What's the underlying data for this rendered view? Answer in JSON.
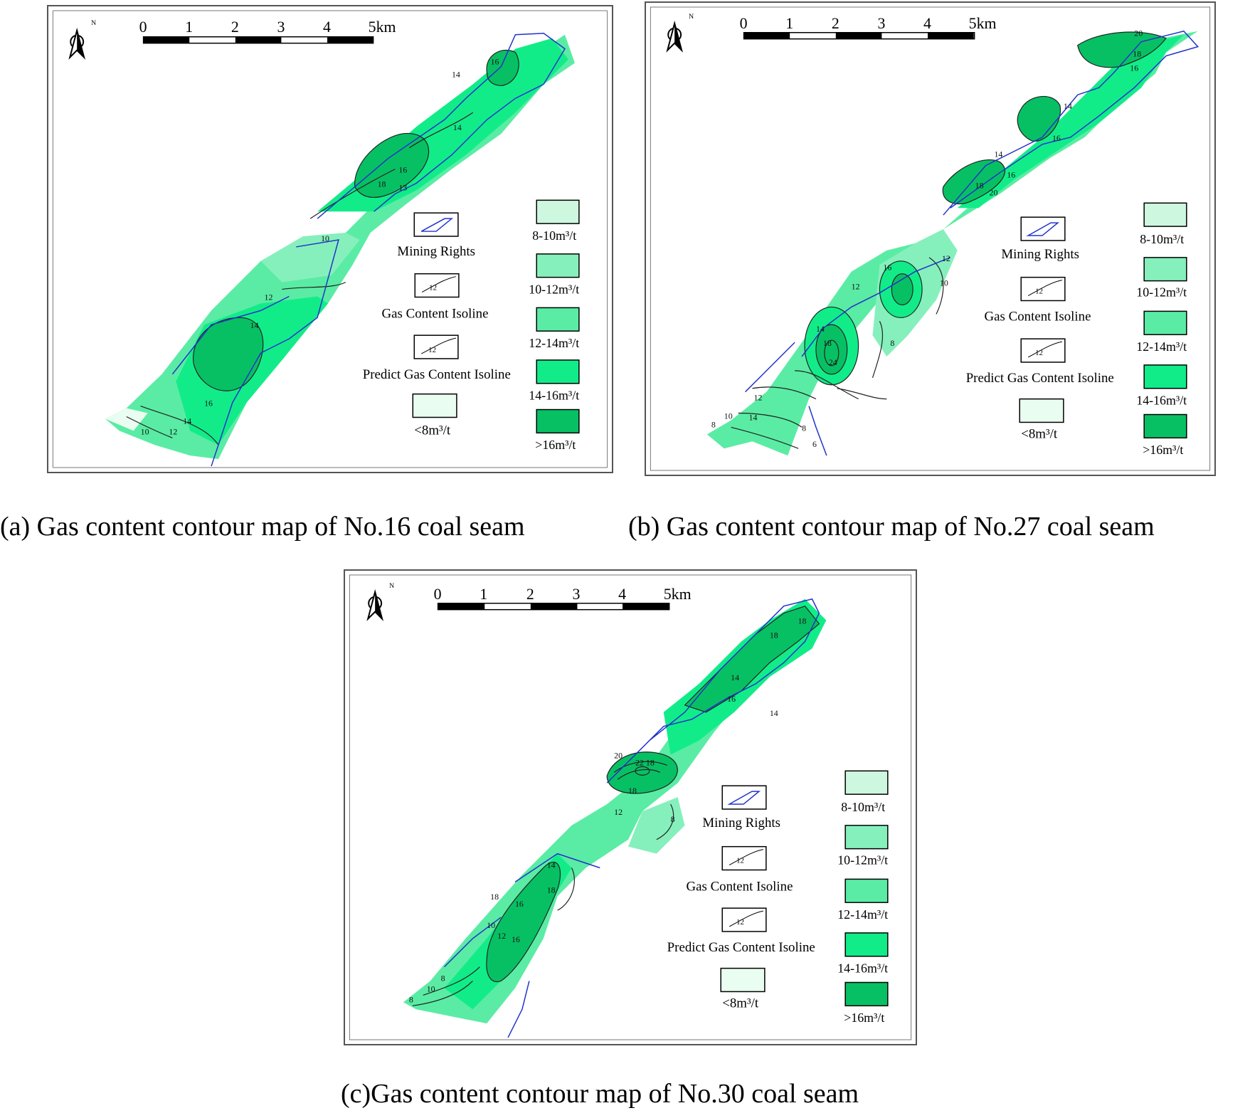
{
  "captions": {
    "a": "(a) Gas content contour map of No.16 coal seam",
    "b": "(b) Gas content contour map of No.27 coal seam",
    "c": "(c)Gas content contour map of No.30 coal seam"
  },
  "north_label": "N",
  "scale": {
    "ticks": [
      "0",
      "1",
      "2",
      "3",
      "4",
      "5km"
    ]
  },
  "legend_left": {
    "mining_rights": "Mining Rights",
    "isoline": "Gas Content Isoline",
    "predict_isoline": "Predict Gas Content Isoline",
    "lt8": "<8m³/t",
    "symbol_value": "12"
  },
  "legend_right": [
    {
      "label": "8-10m³/t",
      "color": "#cdf7df"
    },
    {
      "label": "10-12m³/t",
      "color": "#86f0bc"
    },
    {
      "label": "12-14m³/t",
      "color": "#5aeca4"
    },
    {
      "label": "14-16m³/t",
      "color": "#11ec89"
    },
    {
      "label": ">16m³/t",
      "color": "#08c064"
    }
  ],
  "lt8_color": "#eafdf1",
  "boundary_color": "#2233cc",
  "isoline_labels": {
    "a": [
      "16",
      "14",
      "14",
      "16",
      "18",
      "13",
      "10",
      "12",
      "14",
      "16",
      "14",
      "12",
      "10"
    ],
    "b": [
      "20",
      "18",
      "16",
      "14",
      "14",
      "16",
      "18",
      "20",
      "16",
      "12",
      "10",
      "16",
      "14",
      "18",
      "24",
      "12",
      "8",
      "10",
      "12",
      "14",
      "8",
      "8",
      "6"
    ],
    "c": [
      "18",
      "18",
      "16",
      "14",
      "14",
      "18",
      "22",
      "20",
      "18",
      "12",
      "8",
      "14",
      "16",
      "18",
      "18",
      "16",
      "12",
      "10",
      "8",
      "10",
      "8"
    ]
  }
}
